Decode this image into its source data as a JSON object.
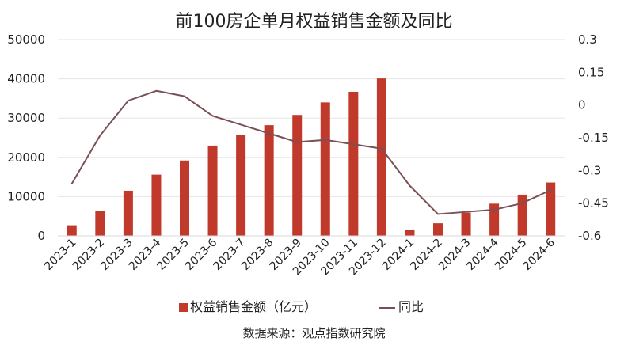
{
  "chart_data": {
    "type": "bar",
    "title": "前100房企单月权益销售金额及同比",
    "source": "数据来源：观点指数研究院",
    "categories": [
      "2023-1",
      "2023-2",
      "2023-3",
      "2023-4",
      "2023-5",
      "2023-6",
      "2023-7",
      "2023-8",
      "2023-9",
      "2023-10",
      "2023-11",
      "2023-12",
      "2024-1",
      "2024-2",
      "2024-3",
      "2024-4",
      "2024-5",
      "2024-6"
    ],
    "series": [
      {
        "name": "权益销售金额（亿元）",
        "type": "bar",
        "axis": "left",
        "color": "#C0392B",
        "values": [
          2700,
          6400,
          11500,
          15600,
          19200,
          23000,
          25700,
          28200,
          30800,
          34000,
          36700,
          40100,
          1600,
          3200,
          5900,
          8200,
          10500,
          13600
        ]
      },
      {
        "name": "同比",
        "type": "line",
        "axis": "right",
        "color": "#7A4F55",
        "values": [
          -0.36,
          -0.14,
          0.02,
          0.065,
          0.04,
          -0.05,
          -0.09,
          -0.13,
          -0.17,
          -0.16,
          -0.18,
          -0.2,
          -0.37,
          -0.5,
          -0.49,
          -0.48,
          -0.45,
          -0.39
        ]
      }
    ],
    "yleft": {
      "ylim": [
        0,
        50000
      ],
      "ticks": [
        0,
        10000,
        20000,
        30000,
        40000,
        50000
      ],
      "tick_labels": [
        "0",
        "10000",
        "20000",
        "30000",
        "40000",
        "50000"
      ]
    },
    "yright": {
      "ylim": [
        -0.6,
        0.3
      ],
      "ticks": [
        -0.6,
        -0.45,
        -0.3,
        -0.15,
        0,
        0.15,
        0.3
      ],
      "tick_labels": [
        "-0.6",
        "-0.45",
        "-0.3",
        "-0.15",
        "0",
        "0.15",
        "0.3"
      ]
    },
    "grid": true,
    "legend": "bottom",
    "x_label_rotation": -45
  }
}
